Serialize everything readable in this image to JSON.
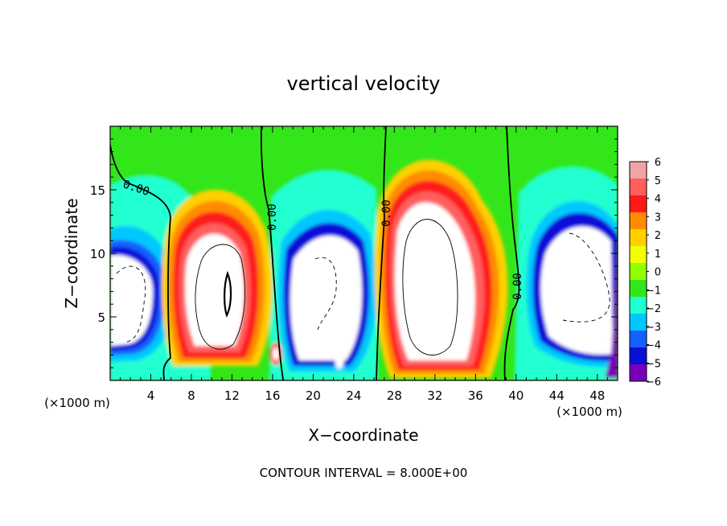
{
  "chart_data": {
    "type": "heatmap",
    "title": "vertical velocity",
    "xlabel": "X−coordinate",
    "ylabel": "Z−coordinate",
    "x_unit": "(×1000 m)",
    "xlim": [
      0,
      50
    ],
    "ylim": [
      0,
      20
    ],
    "x_ticks": [
      4,
      8,
      12,
      16,
      20,
      24,
      28,
      32,
      36,
      40,
      44,
      48
    ],
    "y_ticks": [
      5,
      10,
      15
    ],
    "footer": "CONTOUR INTERVAL = 8.000E+00",
    "colorbar": {
      "min": -6,
      "max": 6,
      "ticks": [
        6,
        5,
        4,
        3,
        2,
        1,
        0,
        -1,
        -2,
        -3,
        -4,
        -5,
        -6
      ],
      "colors": [
        "#f4a3a3",
        "#ff5e5e",
        "#ff1a1a",
        "#ff8c00",
        "#ffd000",
        "#f0ff00",
        "#90ff00",
        "#33e61a",
        "#20ffd0",
        "#00c8ff",
        "#1560ff",
        "#0a0fd8",
        "#7a00b8"
      ]
    },
    "contour_labels": [
      "0.00",
      "0.00",
      "0.00",
      "0.00"
    ],
    "features": [
      {
        "kind": "updraft",
        "x_center": 11,
        "z_center": 7
      },
      {
        "kind": "updraft",
        "x_center": 31,
        "z_center": 7.5
      },
      {
        "kind": "downdraft",
        "x_center": 2,
        "z_center": 7
      },
      {
        "kind": "downdraft",
        "x_center": 21,
        "z_center": 7
      },
      {
        "kind": "downdraft",
        "x_center": 46,
        "z_center": 7.5
      }
    ]
  }
}
